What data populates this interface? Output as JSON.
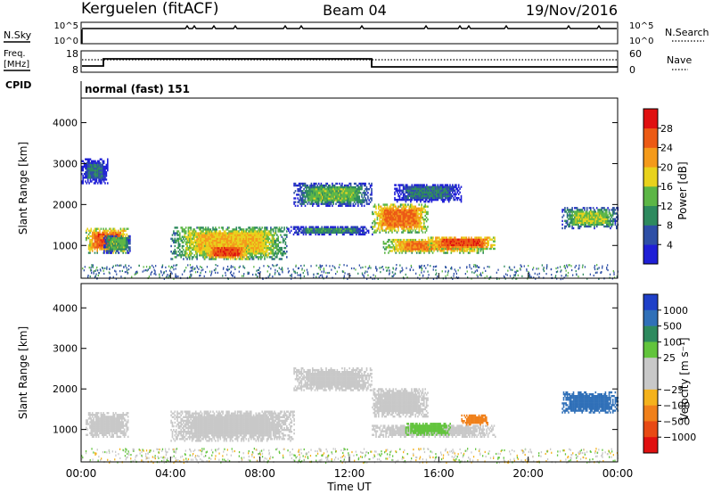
{
  "header": {
    "station": "Kerguelen (fitACF)",
    "beam": "Beam 04",
    "date": "19/Nov/2016"
  },
  "strips": {
    "nsky": {
      "label": "N.Sky",
      "left_ticks": [
        "10^5",
        "10^0"
      ],
      "right_ticks": [
        "10^5",
        "10^0"
      ],
      "right_label": "N.Search"
    },
    "freq": {
      "label_line1": "Freq.",
      "label_line2": "[MHz]",
      "left_ticks": [
        "18",
        "8"
      ],
      "right_ticks": [
        "60",
        "0"
      ],
      "right_label": "Nave"
    },
    "cpid": {
      "label": "CPID",
      "program": "normal (fast) 151"
    }
  },
  "x_axis": {
    "label": "Time UT",
    "ticks": [
      "00:00",
      "04:00",
      "08:00",
      "12:00",
      "16:00",
      "20:00",
      "00:00"
    ]
  },
  "colors": {
    "power": [
      "#1f1fd6",
      "#2e4fa6",
      "#2e8a5e",
      "#5cb646",
      "#e8d21c",
      "#f49a1a",
      "#ec5a14",
      "#e01010"
    ],
    "velocity": [
      "#1f40c8",
      "#3070b8",
      "#2e8a5e",
      "#62c43c",
      "#c8c8c8",
      "#c8c8c8",
      "#f4b21c",
      "#f0801a",
      "#e84a14",
      "#e01010"
    ]
  },
  "chart_data": [
    {
      "type": "heatmap",
      "title": "Power",
      "xlabel": "Time UT",
      "ylabel": "Slant Range [km]",
      "xlim": [
        0,
        24
      ],
      "ylim": [
        200,
        4600
      ],
      "y_ticks": [
        "4000",
        "3000",
        "2000",
        "1000"
      ],
      "colorbar": {
        "label": "Power [dB]",
        "ticks": [
          "28",
          "24",
          "20",
          "16",
          "12",
          "8",
          "4"
        ],
        "range": [
          0,
          32
        ]
      },
      "regions": [
        {
          "t": [
            0.2,
            2.1
          ],
          "r": [
            800,
            1400
          ],
          "level": 26
        },
        {
          "t": [
            1.0,
            2.2
          ],
          "r": [
            800,
            1250
          ],
          "level": 14
        },
        {
          "t": [
            0.0,
            1.2
          ],
          "r": [
            2500,
            3100
          ],
          "level": 8
        },
        {
          "t": [
            4.0,
            9.2
          ],
          "r": [
            650,
            1450
          ],
          "level": 20
        },
        {
          "t": [
            5.5,
            7.5
          ],
          "r": [
            650,
            1000
          ],
          "level": 27
        },
        {
          "t": [
            9.2,
            13.0
          ],
          "r": [
            1250,
            1450
          ],
          "level": 10
        },
        {
          "t": [
            9.5,
            13.0
          ],
          "r": [
            1950,
            2500
          ],
          "level": 14
        },
        {
          "t": [
            13.0,
            15.5
          ],
          "r": [
            1300,
            2000
          ],
          "level": 25
        },
        {
          "t": [
            13.5,
            18.0
          ],
          "r": [
            800,
            1150
          ],
          "level": 24
        },
        {
          "t": [
            15.5,
            18.5
          ],
          "r": [
            900,
            1200
          ],
          "level": 27
        },
        {
          "t": [
            14.0,
            17.0
          ],
          "r": [
            2050,
            2500
          ],
          "level": 9
        },
        {
          "t": [
            21.5,
            24.0
          ],
          "r": [
            1400,
            1900
          ],
          "level": 16
        }
      ]
    },
    {
      "type": "heatmap",
      "title": "Velocity",
      "xlabel": "Time UT",
      "ylabel": "Slant Range [km]",
      "xlim": [
        0,
        24
      ],
      "ylim": [
        200,
        4600
      ],
      "y_ticks": [
        "4000",
        "3000",
        "2000",
        "1000"
      ],
      "colorbar": {
        "label": "Velocity [m s⁻¹]",
        "ticks": [
          "1000",
          "500",
          "100",
          "25",
          "−25",
          "−100",
          "−500",
          "−1000"
        ]
      },
      "regions": [
        {
          "t": [
            0.2,
            2.1
          ],
          "r": [
            800,
            1400
          ],
          "velocity": 0
        },
        {
          "t": [
            4.0,
            9.5
          ],
          "r": [
            700,
            1450
          ],
          "velocity": 0
        },
        {
          "t": [
            9.5,
            13.0
          ],
          "r": [
            1950,
            2500
          ],
          "velocity": 0
        },
        {
          "t": [
            13.0,
            15.5
          ],
          "r": [
            1300,
            2000
          ],
          "velocity": 0
        },
        {
          "t": [
            13.0,
            18.5
          ],
          "r": [
            800,
            1100
          ],
          "velocity": 0
        },
        {
          "t": [
            14.5,
            16.5
          ],
          "r": [
            850,
            1150
          ],
          "velocity": 150
        },
        {
          "t": [
            17.0,
            18.2
          ],
          "r": [
            1100,
            1350
          ],
          "velocity": -200
        },
        {
          "t": [
            21.5,
            24.0
          ],
          "r": [
            1400,
            1900
          ],
          "velocity": 300
        }
      ]
    }
  ]
}
